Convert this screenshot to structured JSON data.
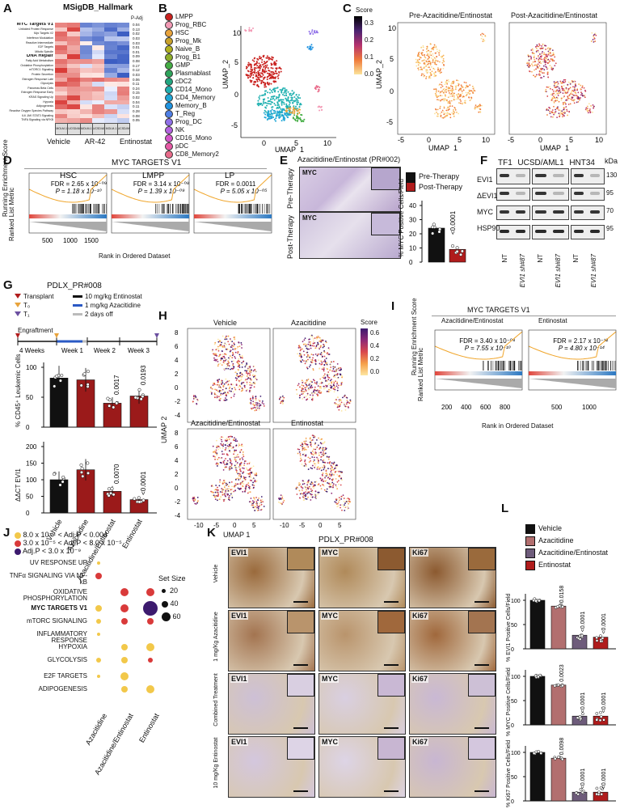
{
  "panel_labels": {
    "A": "A",
    "B": "B",
    "C": "C",
    "D": "D",
    "E": "E",
    "F": "F",
    "G": "G",
    "H": "H",
    "I": "I",
    "J": "J",
    "K": "K",
    "L": "L"
  },
  "panelA": {
    "title": "MSigDB_Hallmark",
    "pathways": [
      "MYC Targets V1",
      "Unfolded Protein Response",
      "Myc Targets V2",
      "Interferon Modulation",
      "Reactive Intermediate",
      "E2F Targets",
      "Mitotic Spindle",
      "DNA Repair",
      "Fatty Acid Metabolism",
      "Oxidative Phosphorylation",
      "mTORC1 Signaling",
      "Protein Secretion",
      "Estrogen Response Late",
      "Glycolysis",
      "Pancreas Beta Cells",
      "Estrogen Response Early",
      "KRAS Signaling Up",
      "Hypoxia",
      "Adipogenesis",
      "Reactive Oxygen Species Pathway",
      "IL6 JAK STAT3 Signaling",
      "TNFA Signaling via NFKB"
    ],
    "bold_rows": [
      0,
      7
    ],
    "p_header": "P-Adj",
    "p_values": [
      "0.04",
      "0.13",
      "0.02",
      "0.03",
      "0.03",
      "0.01",
      "0.01",
      "0.09",
      "0.08",
      "0.17",
      "0.12",
      "0.03",
      "0.06",
      "0.11",
      "0.24",
      "0.15",
      "0.02",
      "0.04",
      "0.11",
      "0.28",
      "0.08",
      "0.05"
    ],
    "columns": [
      "MOLM-1",
      "UCSD/AML1",
      "MOLM-1",
      "UCSD/AML1",
      "MOLM-1",
      "UCSD/AML1"
    ],
    "groups": [
      "Vehicle",
      "AR-42",
      "Entinostat"
    ],
    "colors": {
      "high": "#d9342b",
      "low": "#3c5fc4",
      "mid": "#f4f4f4"
    }
  },
  "panelB": {
    "legend": [
      {
        "name": "LMPP",
        "color": "#c9211e"
      },
      {
        "name": "Prog_RBC",
        "color": "#f39ab5"
      },
      {
        "name": "HSC",
        "color": "#e8a33c"
      },
      {
        "name": "Prog_Mk",
        "color": "#c9a12a"
      },
      {
        "name": "Naive_B",
        "color": "#b2b11f"
      },
      {
        "name": "Prog_B1",
        "color": "#8fae2b"
      },
      {
        "name": "GMP",
        "color": "#44ad44"
      },
      {
        "name": "Plasmablast",
        "color": "#2ea45b"
      },
      {
        "name": "cDC2",
        "color": "#21a680"
      },
      {
        "name": "CD14_Mono",
        "color": "#1fb0b0"
      },
      {
        "name": "CD4_Memory",
        "color": "#1fa6d6"
      },
      {
        "name": "Memory_B",
        "color": "#1f93e0"
      },
      {
        "name": "T_Reg",
        "color": "#4f7fe6"
      },
      {
        "name": "Prog_DC",
        "color": "#8f6fe8"
      },
      {
        "name": "NK",
        "color": "#b462e0"
      },
      {
        "name": "CD16_Mono",
        "color": "#d455c9"
      },
      {
        "name": "pDC",
        "color": "#e65aa5"
      },
      {
        "name": "CD8_Memory2",
        "color": "#e96b8a"
      }
    ],
    "xlabel": "UMAP_1",
    "ylabel": "UMAP_2",
    "xticks": [
      "0",
      "5",
      "10"
    ],
    "yticks": [
      "10",
      "5",
      "0",
      "-5"
    ]
  },
  "panelC": {
    "score_label": "Score",
    "score_ticks": [
      "0.3",
      "0.2",
      "0.1",
      "0.0"
    ],
    "panels": [
      "Pre-Azacitidine/Entinostat",
      "Post-Azacitidine/Entinostat"
    ],
    "xlabel": "UMAP_1",
    "xticks": [
      "-5",
      "0",
      "5",
      "10"
    ],
    "yticks": [
      "10",
      "5",
      "0",
      "-5"
    ]
  },
  "panelD": {
    "title": "MYC TARGETS V1",
    "subpanels": [
      {
        "name": "HSC",
        "fdr": "FDR = 2.65 x 10⁻⁰⁹",
        "p": "P = 1.18 x 10⁻¹⁰"
      },
      {
        "name": "LMPP",
        "fdr": "FDR = 3.14 x 10⁻⁰⁸",
        "p": "P = 1.39 x 10⁻⁰⁹"
      },
      {
        "name": "LP",
        "fdr": "FDR = 0.0011",
        "p": "P = 5.05 x 10⁻⁰⁵"
      }
    ],
    "ylabel_top": "Running Enrichment Score",
    "ylabel_bottom": "Ranked List Metric",
    "xlabel": "Rank in Ordered Dataset",
    "xticks": [
      "500",
      "1000",
      "1500"
    ]
  },
  "panelE": {
    "title": "Azacitidine/Entinostat (PR#002)",
    "stain": "MYC",
    "rows": [
      "Pre-Therapy",
      "Post-Therapy"
    ],
    "legend": [
      {
        "name": "Pre-Therapy",
        "color": "#111111"
      },
      {
        "name": "Post-Therapy",
        "color": "#b01c1c"
      }
    ],
    "ylabel": "% MYC Positive Cells/Field",
    "yticks": [
      "40",
      "30",
      "20",
      "10",
      "0"
    ],
    "values": [
      24,
      9
    ],
    "pvalue": "<0.0001"
  },
  "panelF": {
    "cell_lines": [
      "TF1",
      "UCSD/AML1",
      "HNT34"
    ],
    "rows": [
      "EVI1",
      "ΔEVI1",
      "MYC",
      "HSP90"
    ],
    "kda_label": "kDa",
    "kda": [
      "130",
      "95",
      "70",
      "95"
    ],
    "lanes": [
      "NT",
      "EVI1 sh#87",
      "NT",
      "EVI1 sh#87",
      "NT",
      "EVI1 sh#87"
    ]
  },
  "panelG": {
    "title": "PDLX_PR#008",
    "legend": [
      {
        "label": "Transplant",
        "kind": "tri",
        "color": "#b01c1c"
      },
      {
        "label": "T₀",
        "kind": "tri",
        "color": "#e8a33c"
      },
      {
        "label": "T₁",
        "kind": "tri",
        "color": "#6b4fa0"
      },
      {
        "label": "10 mg/kg Entinostat",
        "kind": "line",
        "color": "#111111"
      },
      {
        "label": "1 mg/kg Azacitidine",
        "kind": "line",
        "color": "#2a59c4"
      },
      {
        "label": "2 days off",
        "kind": "line",
        "color": "#bbbbbb"
      }
    ],
    "timeline": [
      "Engraftment",
      "4 Weeks",
      "Week 1",
      "Week 2",
      "Week 3"
    ],
    "top": {
      "ylabel": "% CD45⁺ Leukemic Cells",
      "yticks": [
        "100",
        "50",
        "0"
      ],
      "values": [
        82,
        79,
        40,
        52
      ],
      "pvalues": [
        "",
        "",
        "0.0017",
        "0.0193"
      ]
    },
    "bottom": {
      "ylabel": "ΔΔCT EVI1",
      "yticks": [
        "200",
        "150",
        "100",
        "50",
        "0"
      ],
      "values": [
        100,
        130,
        65,
        40
      ],
      "pvalues": [
        "",
        "",
        "0.0070",
        "<0.0001"
      ]
    },
    "categories": [
      "Vehicle",
      "Azacitidine",
      "Azacitidine/Entinostat",
      "Entinostat"
    ],
    "colors": [
      "#111111",
      "#9b1a1a",
      "#9b1a1a",
      "#9b1a1a"
    ]
  },
  "panelH": {
    "panels": [
      "Vehicle",
      "Azacitidine",
      "Azacitidine/Entinostat",
      "Entinostat"
    ],
    "score_label": "Score",
    "score_ticks": [
      "0.6",
      "0.4",
      "0.2",
      "0.0"
    ],
    "xlabel": "UMAP 1",
    "ylabel": "UMAP 2",
    "xticks": [
      "-10",
      "-5",
      "0",
      "5"
    ],
    "yticks": [
      "8",
      "6",
      "4",
      "2",
      "0",
      "-2",
      "-4"
    ]
  },
  "panelI": {
    "title": "MYC TARGETS V1",
    "subpanels": [
      {
        "name": "Azacitidine/Entinostat",
        "fdr": "FDR = 3.40 x 10⁻⁰⁸",
        "p": "P = 7.55 x 10⁻¹⁰"
      },
      {
        "name": "Entinostat",
        "fdr": "FDR = 2.17 x 10⁻¹²",
        "p": "P = 4.80 x 10⁻¹⁴"
      }
    ],
    "ylabel_top": "Running Enrichment Score",
    "ylabel_bottom": "Ranked List Metric",
    "xlabel": "Rank in Ordered Dataset",
    "xticks_left": [
      "200",
      "400",
      "600",
      "800"
    ],
    "xticks_right": [
      "500",
      "1000"
    ]
  },
  "panelJ": {
    "sig_legend": [
      {
        "text": "8.0 x 10⁻⁴ < Adj.P < 0.004",
        "color": "#f2c84a"
      },
      {
        "text": "3.0 x 10⁻⁵ < Adj.P < 8.0 x 10⁻⁵",
        "color": "#d93a3a"
      },
      {
        "text": "Adj.P < 3.0 x 10⁻⁹",
        "color": "#3c1a6e"
      }
    ],
    "size_title": "Set Size",
    "sizes": [
      "20",
      "40",
      "60"
    ],
    "pathways": [
      "UV RESPONSE UP",
      "TNFα SIGNALING VIA NF-kB",
      "OXIDATIVE PHOSPHORYLATION",
      "MYC TARGETS V1",
      "mTORC SIGNALING",
      "INFLAMMATORY RESPONSE",
      "HYPOXIA",
      "GLYCOLYSIS",
      "E2F TARGETS",
      "ADIPOGENESIS"
    ],
    "bold_index": 3,
    "columns": [
      "Azacitidine",
      "Azacitidine/Entinostat",
      "Entinostat"
    ]
  },
  "panelK": {
    "title": "PDLX_PR#008",
    "stains": [
      "EVI1",
      "MYC",
      "Ki67"
    ],
    "rows": [
      "Vehicle",
      "1 mg/Kg Azacitidine",
      "Combined Treatment",
      "10 mg/Kg Entinostat"
    ]
  },
  "panelL": {
    "legend": [
      {
        "name": "Vehicle",
        "color": "#111111"
      },
      {
        "name": "Azacitidine",
        "color": "#b26f6f"
      },
      {
        "name": "Azacitidine/Entinostat",
        "color": "#6e5c7b"
      },
      {
        "name": "Entinostat",
        "color": "#b01c1c"
      }
    ],
    "charts": [
      {
        "ylabel": "% EVI1 Positive Cells/Field",
        "values": [
          100,
          88,
          28,
          24
        ],
        "pvalues": [
          "",
          "0.0158",
          "<0.0001",
          "<0.0001"
        ]
      },
      {
        "ylabel": "% MYC Positive Cells/Field",
        "values": [
          100,
          82,
          18,
          18
        ],
        "pvalues": [
          "",
          "0.0023",
          "<0.0001",
          "<0.0001"
        ]
      },
      {
        "ylabel": "% Ki67 Positive Cells/Field",
        "values": [
          100,
          88,
          18,
          18
        ],
        "pvalues": [
          "",
          "0.0098",
          "<0.0001",
          "<0.0001"
        ]
      }
    ],
    "yticks": [
      "100",
      "50",
      "0"
    ]
  }
}
